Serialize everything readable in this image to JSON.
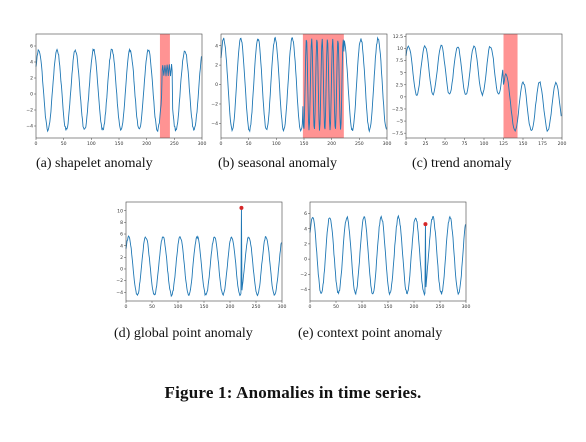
{
  "figure_caption": "Figure 1: Anomalies in time series.",
  "colors": {
    "line": "#1f77b4",
    "highlight": "#ff8080",
    "point": "#d62728",
    "axes": "#444444"
  },
  "chart_data": [
    {
      "id": "a",
      "type": "line",
      "caption": "(a)  shapelet anomaly",
      "title": "",
      "xlabel": "",
      "ylabel": "",
      "xlim": [
        0,
        300
      ],
      "ylim": [
        -5.5,
        7.5
      ],
      "xticks": [
        0,
        50,
        100,
        150,
        200,
        250,
        300
      ],
      "yticks": [
        -4,
        -2,
        0,
        2,
        4,
        6
      ],
      "base": {
        "n": 300,
        "period": 33,
        "amplitude": 5,
        "offset": 0.5,
        "noise": 0.2
      },
      "anomaly": {
        "kind": "shapelet",
        "x_range": [
          228,
          246
        ],
        "amplitude": 0.7,
        "period": 4,
        "level": 3
      },
      "highlight_x": [
        224,
        242
      ]
    },
    {
      "id": "b",
      "type": "line",
      "caption": "(b)  seasonal anomaly",
      "title": "",
      "xlabel": "",
      "ylabel": "",
      "xlim": [
        0,
        300
      ],
      "ylim": [
        -5.5,
        5.2
      ],
      "xticks": [
        0,
        50,
        100,
        150,
        200,
        250,
        300
      ],
      "yticks": [
        -4,
        -2,
        0,
        2,
        4
      ],
      "base": {
        "n": 300,
        "period": 31,
        "amplitude": 4.7,
        "offset": 0,
        "noise": 0.15
      },
      "anomaly": {
        "kind": "seasonal",
        "x_range": [
          148,
          222
        ],
        "period": 9.5
      },
      "highlight_x": [
        148,
        222
      ]
    },
    {
      "id": "c",
      "type": "line",
      "caption": "(c)  trend anomaly",
      "title": "",
      "xlabel": "",
      "ylabel": "",
      "xlim": [
        0,
        200
      ],
      "ylim": [
        -8.5,
        13
      ],
      "xticks": [
        0,
        25,
        50,
        75,
        100,
        125,
        150,
        175,
        200
      ],
      "yticks": [
        -7.5,
        -5.0,
        -2.5,
        0.0,
        2.5,
        5.0,
        7.5,
        10.0,
        12.5
      ],
      "base": {
        "n": 200,
        "period": 21,
        "amplitude": 5,
        "offset": 5.5,
        "noise": 0.25
      },
      "anomaly": {
        "kind": "trend",
        "start": 125,
        "shift": -7.5,
        "ramp": 8
      },
      "highlight_x": [
        125,
        143
      ]
    },
    {
      "id": "d",
      "type": "line",
      "caption": "(d)  global point anomaly",
      "title": "",
      "xlabel": "",
      "ylabel": "",
      "xlim": [
        0,
        300
      ],
      "ylim": [
        -5.5,
        11.5
      ],
      "xticks": [
        0,
        50,
        100,
        150,
        200,
        250,
        300
      ],
      "yticks": [
        -4,
        -2,
        0,
        2,
        4,
        6,
        8,
        10
      ],
      "base": {
        "n": 300,
        "period": 33,
        "amplitude": 5,
        "offset": 0.5,
        "noise": 0.2
      },
      "anomaly": {
        "kind": "point",
        "x": 222,
        "y": 10.5
      },
      "point": {
        "x": 222,
        "y": 10.5
      }
    },
    {
      "id": "e",
      "type": "line",
      "caption": "(e)  context point anomaly",
      "title": "",
      "xlabel": "",
      "ylabel": "",
      "xlim": [
        0,
        300
      ],
      "ylim": [
        -5.5,
        7.5
      ],
      "xticks": [
        0,
        50,
        100,
        150,
        200,
        250,
        300
      ],
      "yticks": [
        -4,
        -2,
        0,
        2,
        4,
        6
      ],
      "base": {
        "n": 300,
        "period": 33,
        "amplitude": 5,
        "offset": 0.5,
        "noise": 0.2
      },
      "anomaly": {
        "kind": "point",
        "x": 222,
        "y": 4.6
      },
      "point": {
        "x": 222,
        "y": 4.6
      }
    }
  ]
}
